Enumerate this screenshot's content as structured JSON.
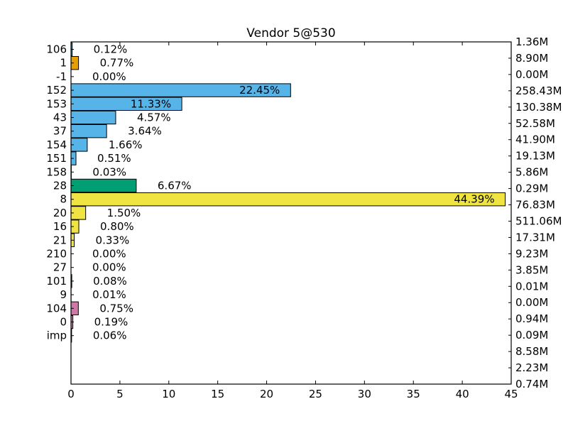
{
  "chart_data": {
    "type": "bar",
    "orientation": "horizontal",
    "title": "Vendor 5@530",
    "xlabel": "",
    "ylabel": "",
    "xlim": [
      0,
      45
    ],
    "x_ticks": [
      0,
      5,
      10,
      15,
      20,
      25,
      30,
      35,
      40,
      45
    ],
    "grid": false,
    "categories": [
      "106",
      "1",
      "-1",
      "152",
      "153",
      "43",
      "37",
      "154",
      "151",
      "158",
      "28",
      "8",
      "20",
      "16",
      "21",
      "210",
      "27",
      "101",
      "9",
      "104",
      "0",
      "imp"
    ],
    "values": [
      0.12,
      0.77,
      0.0,
      22.45,
      11.33,
      4.57,
      3.64,
      1.66,
      0.51,
      0.03,
      6.67,
      44.39,
      1.5,
      0.8,
      0.33,
      0.0,
      0.0,
      0.08,
      0.01,
      0.75,
      0.19,
      0.06
    ],
    "percent_labels": [
      "0.12%",
      "0.77%",
      "0.00%",
      "22.45%",
      "11.33%",
      "4.57%",
      "3.64%",
      "1.66%",
      "0.51%",
      "0.03%",
      "6.67%",
      "44.39%",
      "1.50%",
      "0.80%",
      "0.33%",
      "0.00%",
      "0.00%",
      "0.08%",
      "0.01%",
      "0.75%",
      "0.19%",
      "0.06%"
    ],
    "colors": [
      "#56b4e9",
      "#e69f00",
      "#e69f00",
      "#56b4e9",
      "#56b4e9",
      "#56b4e9",
      "#56b4e9",
      "#56b4e9",
      "#56b4e9",
      "#56b4e9",
      "#009e73",
      "#f0e442",
      "#f0e442",
      "#f0e442",
      "#f0e442",
      "#f0e442",
      "#f0e442",
      "#0072b2",
      "#0072b2",
      "#cc79a7",
      "#cc79a7",
      "#cc79a7"
    ],
    "right_axis_labels": [
      "1.36M",
      "8.90M",
      "0.00M",
      "258.43M",
      "130.38M",
      "52.58M",
      "41.90M",
      "19.13M",
      "5.86M",
      "0.29M",
      "76.83M",
      "511.06M",
      "17.31M",
      "9.23M",
      "3.85M",
      "0.01M",
      "0.00M",
      "0.94M",
      "0.09M",
      "8.58M",
      "2.23M",
      "0.74M"
    ]
  }
}
